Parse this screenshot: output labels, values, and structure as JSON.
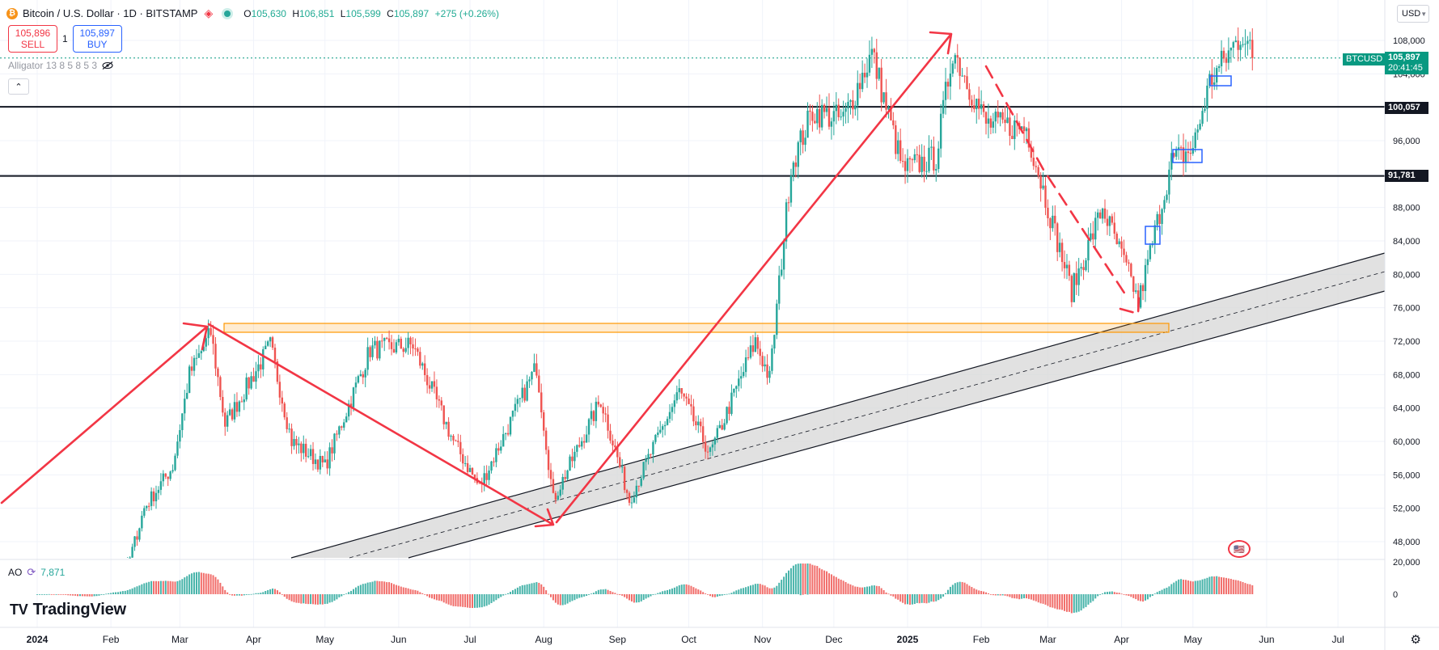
{
  "header": {
    "coin_icon": "bitcoin-icon",
    "symbol": "Bitcoin / U.S. Dollar · 1D · BITSTAMP",
    "open_label": "O",
    "open": "105,630",
    "high_label": "H",
    "high": "106,851",
    "low_label": "L",
    "low": "105,599",
    "close_label": "C",
    "close": "105,897",
    "change": "+275 (+0.26%)"
  },
  "trade": {
    "sell_price": "105,896",
    "sell_label": "SELL",
    "spread": "1",
    "buy_price": "105,897",
    "buy_label": "BUY"
  },
  "indicators": {
    "alligator": "Alligator 13 8 5 8 5 3",
    "ao_label": "AO",
    "ao_value": "7,871"
  },
  "currency": "USD",
  "price_tags": {
    "symbol": "BTCUSD",
    "last": "105,897",
    "countdown": "20:41:45",
    "level_1": "100,057",
    "level_2": "91,781"
  },
  "colors": {
    "up": "#26a69a",
    "down": "#ef5350",
    "arrows": "#f23645",
    "zone": "#ff9800",
    "box": "#2962ff",
    "channel_fill": "#d9d9d9"
  },
  "branding": "TradingView",
  "chart_data": {
    "type": "candlestick",
    "title": "Bitcoin / U.S. Dollar · 1D · BITSTAMP",
    "y_ticks": [
      "108,000",
      "104,000",
      "100,000",
      "96,000",
      "92,000",
      "88,000",
      "84,000",
      "80,000",
      "76,000",
      "72,000",
      "68,000",
      "64,000",
      "60,000",
      "56,000",
      "52,000",
      "48,000"
    ],
    "x_ticks": [
      "2024",
      "Feb",
      "Mar",
      "Apr",
      "May",
      "Jun",
      "Jul",
      "Aug",
      "Sep",
      "Oct",
      "Nov",
      "Dec",
      "2025",
      "Feb",
      "Mar",
      "Apr",
      "May",
      "Jun",
      "Jul"
    ],
    "ylim": [
      45000,
      110000
    ],
    "ao_ticks": [
      "20,000",
      "0"
    ],
    "horizontal_levels": [
      100057,
      91781
    ],
    "path": [
      [
        "2024-01-01",
        43000
      ],
      [
        "2024-01-23",
        39500
      ],
      [
        "2024-02-08",
        45000
      ],
      [
        "2024-02-15",
        52000
      ],
      [
        "2024-02-27",
        57000
      ],
      [
        "2024-03-05",
        68000
      ],
      [
        "2024-03-14",
        73000
      ],
      [
        "2024-03-20",
        62000
      ],
      [
        "2024-04-08",
        71500
      ],
      [
        "2024-04-17",
        60000
      ],
      [
        "2024-05-01",
        57000
      ],
      [
        "2024-05-20",
        71000
      ],
      [
        "2024-06-07",
        71500
      ],
      [
        "2024-06-24",
        60000
      ],
      [
        "2024-07-05",
        54500
      ],
      [
        "2024-07-29",
        69000
      ],
      [
        "2024-08-05",
        53000
      ],
      [
        "2024-08-25",
        65000
      ],
      [
        "2024-09-06",
        53000
      ],
      [
        "2024-09-27",
        66000
      ],
      [
        "2024-10-10",
        58500
      ],
      [
        "2024-10-29",
        72000
      ],
      [
        "2024-11-04",
        67500
      ],
      [
        "2024-11-13",
        93000
      ],
      [
        "2024-11-22",
        99500
      ],
      [
        "2024-12-05",
        98500
      ],
      [
        "2024-12-17",
        106500
      ],
      [
        "2024-12-30",
        92500
      ],
      [
        "2025-01-13",
        94000
      ],
      [
        "2025-01-20",
        107000
      ],
      [
        "2025-02-03",
        98000
      ],
      [
        "2025-02-20",
        97500
      ],
      [
        "2025-03-03",
        86000
      ],
      [
        "2025-03-11",
        78000
      ],
      [
        "2025-03-24",
        88000
      ],
      [
        "2025-04-06",
        78500
      ],
      [
        "2025-04-08",
        76500
      ],
      [
        "2025-04-22",
        93500
      ],
      [
        "2025-05-01",
        95000
      ],
      [
        "2025-05-08",
        103000
      ],
      [
        "2025-05-22",
        109000
      ],
      [
        "2025-05-26",
        105897
      ]
    ],
    "last_close": 105897,
    "open": 105630,
    "high": 106851,
    "low": 105599
  }
}
